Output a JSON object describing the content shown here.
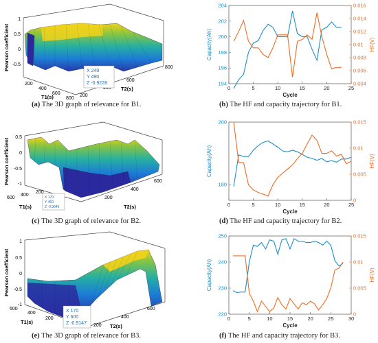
{
  "captions": [
    {
      "label": "(a)",
      "text": "The 3D graph of relevance for B1."
    },
    {
      "label": "(b)",
      "text": "The HF and capacity trajectory for B1."
    },
    {
      "label": "(c)",
      "text": "The 3D graph of relevance for B2."
    },
    {
      "label": "(d)",
      "text": "The HF and capacity trajectory for B2."
    },
    {
      "label": "(e)",
      "text": "The 3D graph of relevance for B3."
    },
    {
      "label": "(f)",
      "text": "The HF and capacity trajectory for B3."
    }
  ],
  "surfaces": [
    {
      "id": "a",
      "zlabel": "Pearson coefficient",
      "xlabel": "T1(s)",
      "ylabel": "T2(s)",
      "z_ticks": [
        "1",
        "0.5",
        "0",
        "-0.5"
      ],
      "x_ticks": [
        "200",
        "400",
        "600",
        "800"
      ],
      "y_ticks": [
        "200",
        "400",
        "600",
        "800"
      ],
      "datatip": {
        "x": "X 240",
        "y": "Y 490",
        "z": "Z -0.9228"
      }
    },
    {
      "id": "c",
      "zlabel": "Pearson coefficient",
      "xlabel": "T1(s)",
      "ylabel": "T2(s)",
      "z_ticks": [
        "0.5",
        "0",
        "-0.5",
        "-1"
      ],
      "x_ticks": [
        "200",
        "400",
        "600"
      ],
      "y_ticks": [
        "200",
        "400",
        "600"
      ],
      "datatip": {
        "x": "X 170",
        "y": "Y 460",
        "z": "Z -0.9946"
      }
    },
    {
      "id": "e",
      "zlabel": "Pearson coefficient",
      "xlabel": "T1(s)",
      "ylabel": "T2(s)",
      "z_ticks": [
        "1",
        "0.5",
        "0",
        "-0.5",
        "-1"
      ],
      "x_ticks": [
        "200",
        "400",
        "600"
      ],
      "y_ticks": [
        "200",
        "400",
        "600"
      ],
      "datatip": {
        "x": "X 170",
        "y": "Y 600",
        "z": "Z -0.9147"
      }
    }
  ],
  "chart_data": [
    {
      "id": "b",
      "type": "line",
      "xlabel": "Cycle",
      "ylabel_left": "Capacity(Ah)",
      "ylabel_right": "HF(V)",
      "xlim": [
        0,
        25
      ],
      "x_ticks": [
        0,
        5,
        10,
        15,
        20,
        25
      ],
      "ylim_left": [
        194,
        204
      ],
      "y_ticks_left": [
        194,
        196,
        198,
        200,
        202,
        204
      ],
      "ylim_right": [
        0.004,
        0.016
      ],
      "y_ticks_right": [
        "0.004",
        "0.006",
        "0.008",
        "0.01",
        "0.012",
        "0.014",
        "0.016"
      ],
      "series": [
        {
          "axis": "left",
          "color": "#1f8fc6",
          "x": [
            1,
            2,
            3,
            4,
            5,
            6,
            7,
            8,
            9,
            10,
            11,
            12,
            13,
            14,
            15,
            16,
            17,
            18,
            19,
            20,
            21,
            22,
            23
          ],
          "values": [
            193.4,
            194.5,
            195.2,
            198.0,
            199.2,
            199.5,
            200.8,
            201.6,
            201.2,
            200.0,
            200.0,
            200.0,
            203.3,
            200.4,
            200.0,
            200.0,
            198.4,
            197.0,
            200.9,
            201.2,
            201.9,
            201.2,
            201.2
          ]
        },
        {
          "axis": "right",
          "color": "#f26b21",
          "x": [
            1,
            2,
            3,
            4,
            5,
            6,
            7,
            8,
            9,
            10,
            11,
            12,
            13,
            14,
            15,
            16,
            17,
            18,
            19,
            20,
            21,
            22,
            23
          ],
          "values": [
            0.0105,
            0.012,
            0.0137,
            0.0105,
            0.0095,
            0.0095,
            0.0085,
            0.008,
            0.0095,
            0.0115,
            0.0115,
            0.0115,
            0.005,
            0.0105,
            0.0108,
            0.0115,
            0.0108,
            0.0149,
            0.0112,
            0.0085,
            0.0063,
            0.0065,
            0.0065
          ]
        }
      ]
    },
    {
      "id": "d",
      "type": "line",
      "xlabel": "Cycle",
      "ylabel_left": "Capacity(Ah)",
      "ylabel_right": "HF(V)",
      "xlim": [
        0,
        25
      ],
      "x_ticks": [
        0,
        5,
        10,
        15,
        20,
        25
      ],
      "ylim_left": [
        175,
        200
      ],
      "y_ticks_left": [
        180,
        200
      ],
      "ylim_right": [
        0,
        0.015
      ],
      "y_ticks_right": [
        "0",
        "0.005",
        "0.01",
        "0.015"
      ],
      "series": [
        {
          "axis": "left",
          "color": "#1f8fc6",
          "x": [
            1,
            2,
            3,
            4,
            5,
            6,
            7,
            8,
            9,
            10,
            11,
            12,
            13,
            14,
            15,
            16,
            17,
            18,
            19,
            20,
            21,
            22,
            23,
            24,
            25
          ],
          "values": [
            179.5,
            189.5,
            189.0,
            189.0,
            191.0,
            192.5,
            193.5,
            194.0,
            193.0,
            192.0,
            190.8,
            190.5,
            191.0,
            190.5,
            189.7,
            188.8,
            188.4,
            187.8,
            188.4,
            187.3,
            187.7,
            187.2,
            188.2,
            188.2,
            188.8
          ]
        },
        {
          "axis": "right",
          "color": "#f26b21",
          "x": [
            1,
            2,
            3,
            4,
            5,
            6,
            7,
            8,
            9,
            10,
            11,
            12,
            13,
            14,
            15,
            16,
            17,
            18,
            19,
            20,
            21,
            22,
            23,
            24,
            25
          ],
          "values": [
            0.015,
            0.0073,
            0.0072,
            0.003,
            0.002,
            0.0015,
            0.0012,
            0.0008,
            0.003,
            0.0044,
            0.0052,
            0.006,
            0.0068,
            0.008,
            0.009,
            0.0108,
            0.0125,
            0.0115,
            0.009,
            0.009,
            0.0095,
            0.0085,
            0.0088,
            0.007,
            0.0075
          ]
        }
      ]
    },
    {
      "id": "f",
      "type": "line",
      "xlabel": "Cycle",
      "ylabel_left": "Capacity(Ah)",
      "ylabel_right": "HF(V)",
      "xlim": [
        0,
        30
      ],
      "x_ticks": [
        0,
        5,
        10,
        15,
        20,
        25,
        30
      ],
      "ylim_left": [
        220,
        250
      ],
      "y_ticks_left": [
        220,
        230,
        240,
        250
      ],
      "ylim_right": [
        0,
        0.015
      ],
      "y_ticks_right": [
        "0",
        "0.005",
        "0.01",
        "0.015"
      ],
      "series": [
        {
          "axis": "left",
          "color": "#1f8fc6",
          "x": [
            1,
            2,
            3,
            4,
            5,
            6,
            7,
            8,
            9,
            10,
            11,
            12,
            13,
            14,
            15,
            16,
            17,
            18,
            19,
            20,
            21,
            22,
            23,
            24,
            25,
            26,
            27,
            28
          ],
          "values": [
            229.0,
            228.3,
            228.5,
            228.5,
            240.0,
            246.5,
            246.0,
            247.5,
            245.0,
            248.5,
            248.0,
            243.0,
            248.5,
            249.0,
            245.0,
            249.0,
            248.0,
            248.0,
            247.5,
            247.5,
            248.0,
            247.5,
            246.5,
            248.0,
            246.5,
            240.5,
            238.5,
            239.5
          ]
        },
        {
          "axis": "right",
          "color": "#f26b21",
          "x": [
            1,
            2,
            3,
            4,
            5,
            6,
            7,
            8,
            9,
            10,
            11,
            12,
            13,
            14,
            15,
            16,
            17,
            18,
            19,
            20,
            21,
            22,
            23,
            24,
            25,
            26,
            27,
            28
          ],
          "values": [
            0.0112,
            0.0112,
            0.0112,
            0.0112,
            0.004,
            0.0025,
            0.0005,
            0.0025,
            0.0015,
            0.0005,
            0.0012,
            0.0032,
            0.0018,
            0.001,
            0.003,
            0.002,
            0.001,
            0.0022,
            0.0018,
            0.0025,
            0.002,
            0.0008,
            0.0018,
            0.003,
            0.005,
            0.0085,
            0.0088,
            0.01
          ]
        }
      ]
    }
  ]
}
